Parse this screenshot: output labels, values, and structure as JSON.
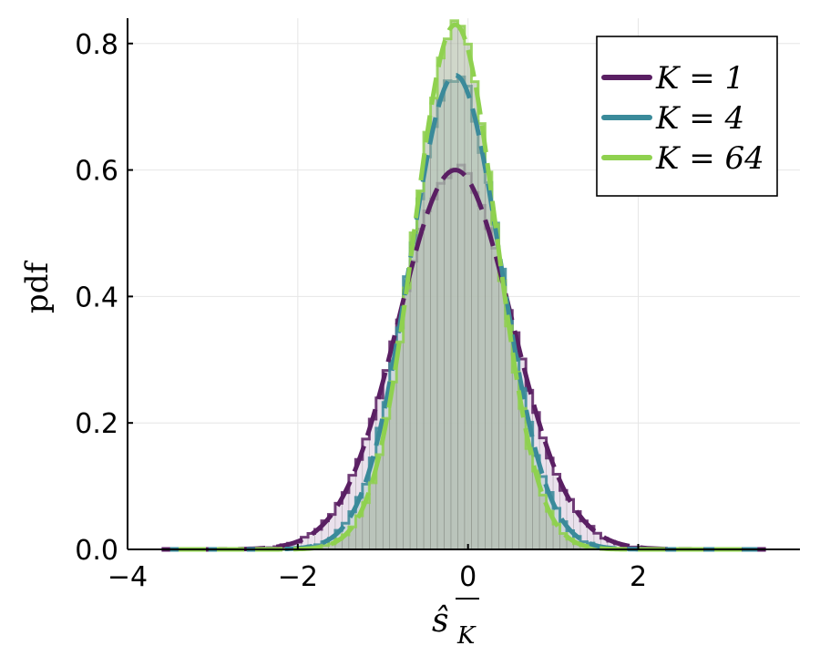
{
  "chart_data": {
    "type": "line",
    "title": "",
    "xlabel": "ŝ̄_K",
    "xlabel_parts": {
      "base": "ŝ",
      "sub": "K"
    },
    "ylabel": "pdf",
    "xlim": [
      -4,
      3.9
    ],
    "ylim": [
      0,
      0.84
    ],
    "xticks": [
      -4,
      -2,
      0,
      2
    ],
    "xtick_labels": [
      "−4",
      "−2",
      "0",
      "2"
    ],
    "yticks": [
      0.0,
      0.2,
      0.4,
      0.6,
      0.8
    ],
    "ytick_labels": [
      "0.0",
      "0.2",
      "0.4",
      "0.6",
      "0.8"
    ],
    "grid": true,
    "legend_position": "top-right",
    "series": [
      {
        "name": "K = 1",
        "legend_label": "K = 1",
        "color": "#5a1f63",
        "mean": -0.15,
        "sd": 0.665,
        "peak": 0.6,
        "support": [
          -3.6,
          3.5
        ]
      },
      {
        "name": "K = 4",
        "legend_label": "K = 4",
        "color": "#3a8a9a",
        "mean": -0.15,
        "sd": 0.533,
        "peak": 0.75,
        "support": [
          -3.5,
          3.4
        ]
      },
      {
        "name": "K = 64",
        "legend_label": "K = 64",
        "color": "#8fd14f",
        "mean": -0.15,
        "sd": 0.482,
        "peak": 0.83,
        "support": [
          -3.4,
          3.3
        ]
      }
    ],
    "histogram_bin_width": 0.08,
    "histogram_range": [
      -3.0,
      2.8
    ],
    "colors": {
      "fill_overlap": "#8a9a86",
      "grid": "#e6e6e6",
      "axis": "#000000"
    }
  }
}
